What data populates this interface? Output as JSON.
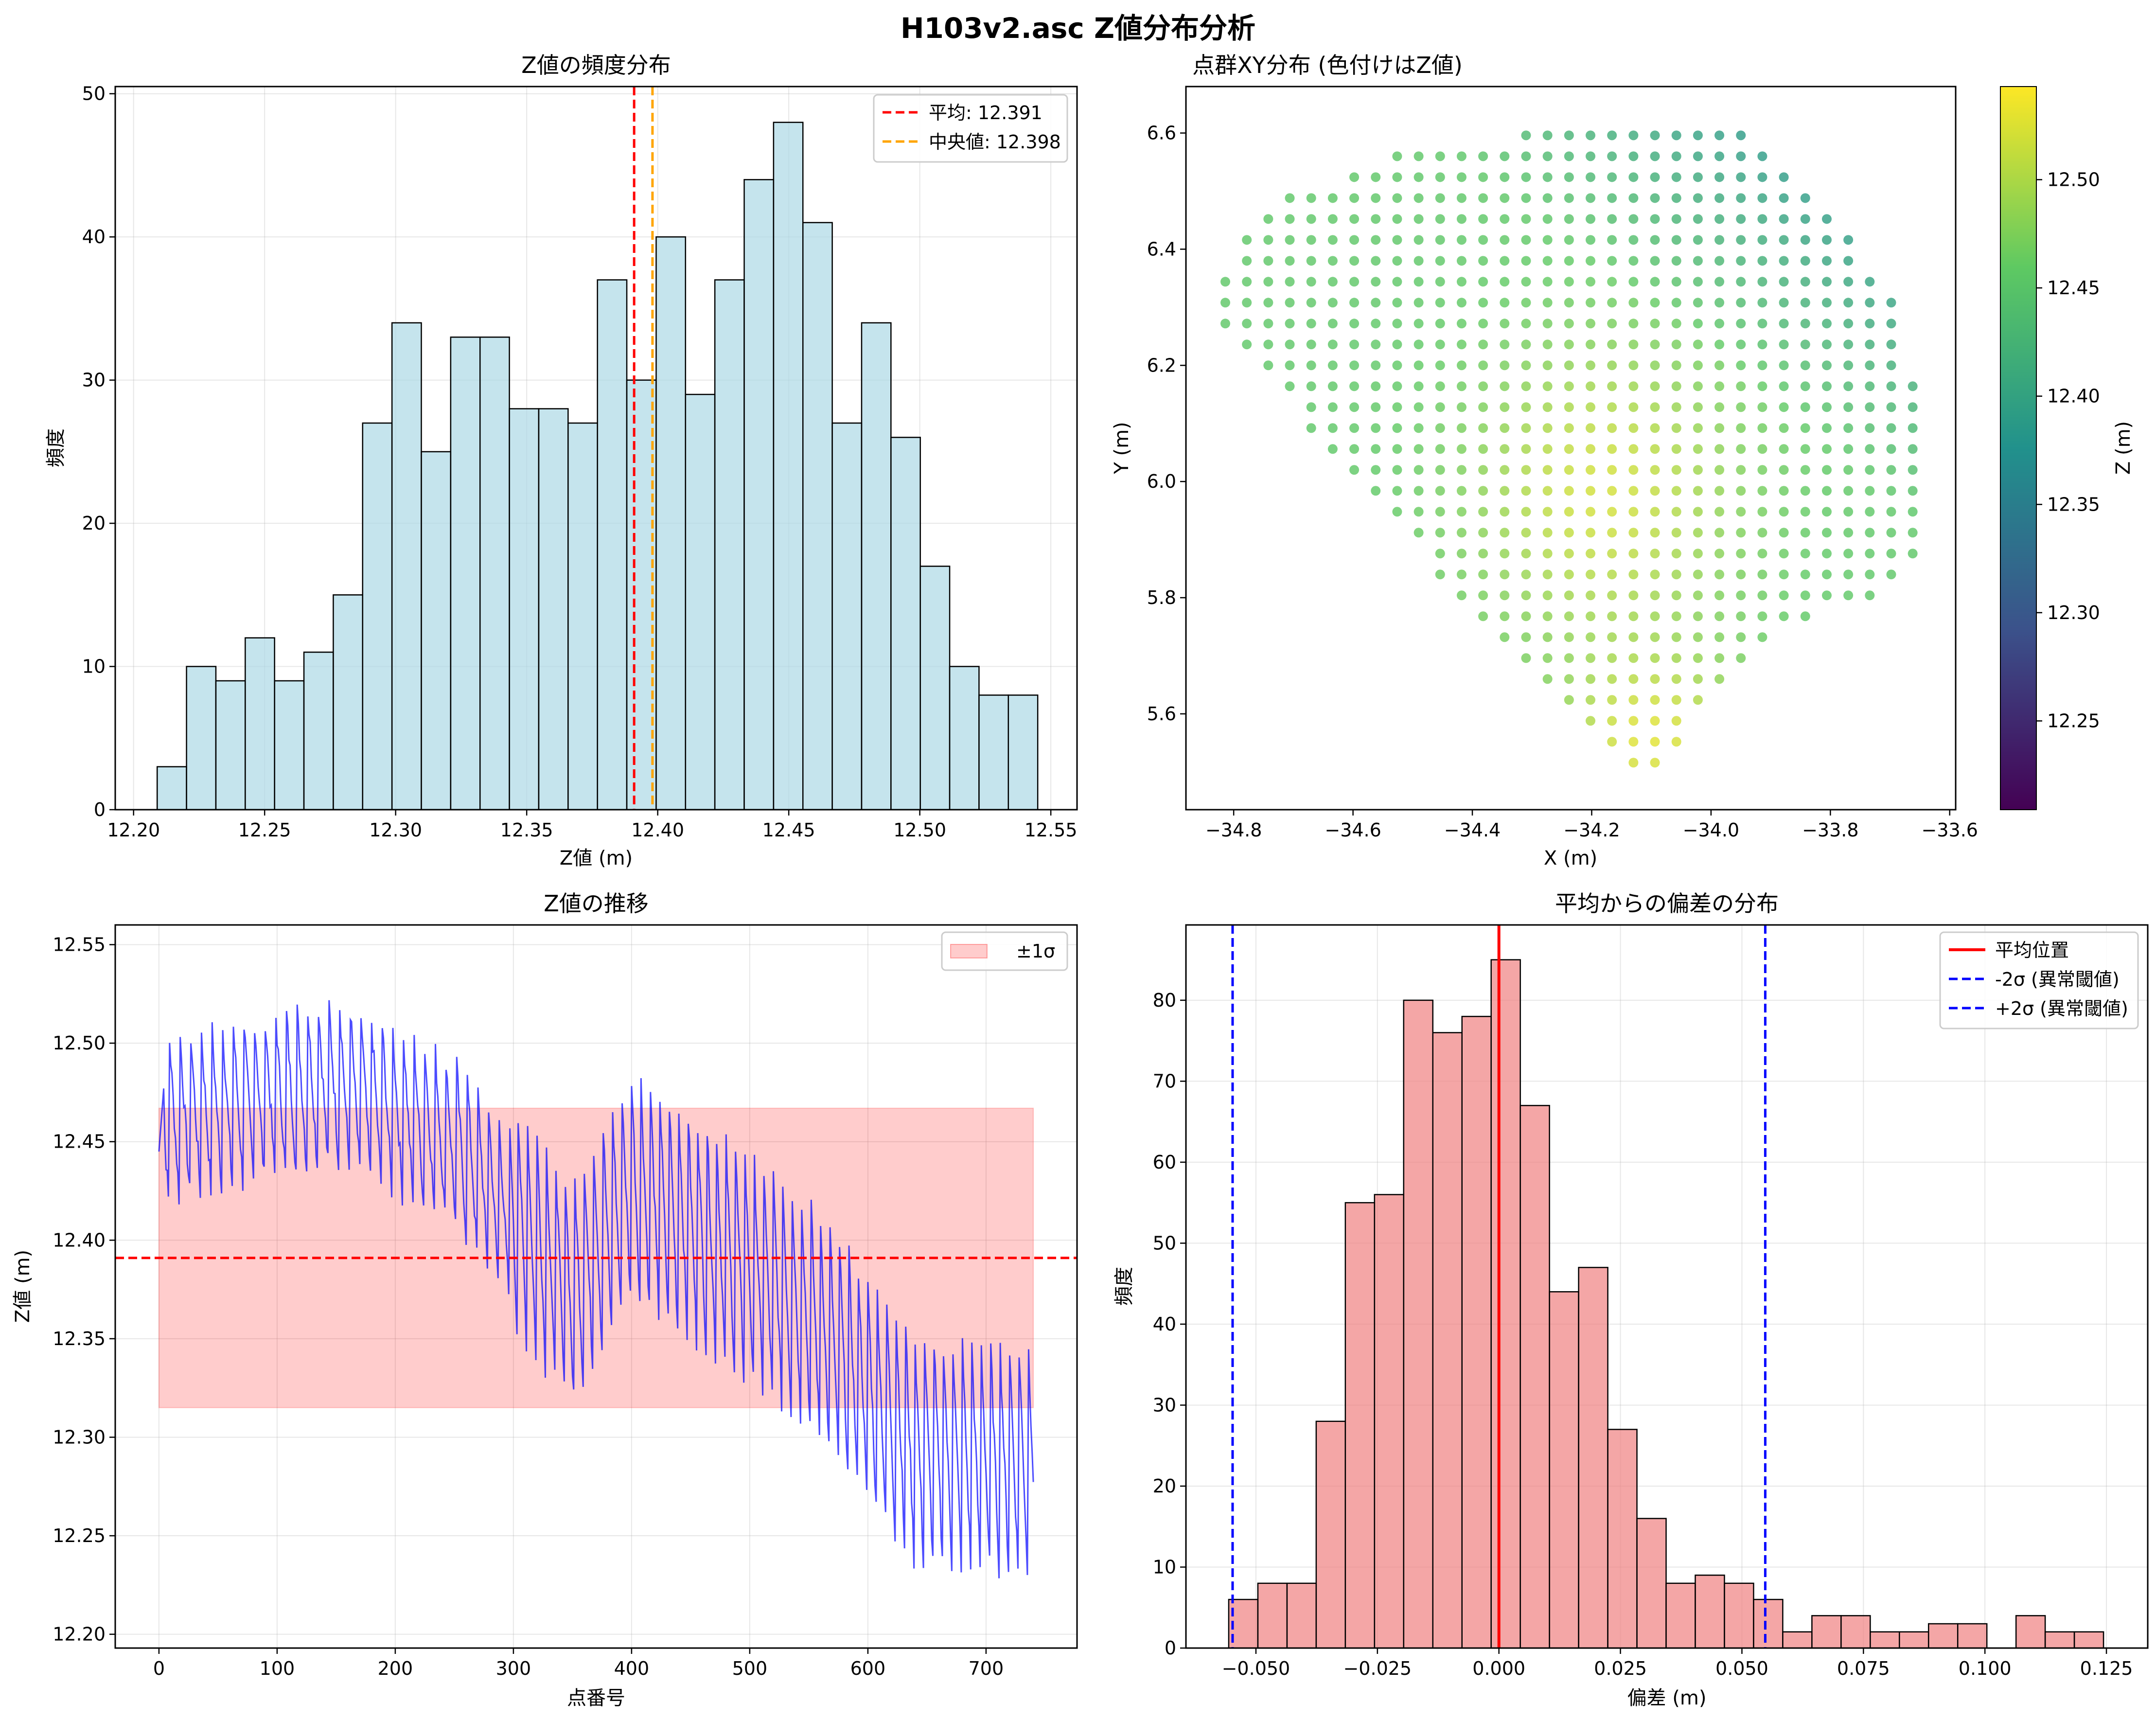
{
  "figure": {
    "title": "H103v2.asc Z値分布分析"
  },
  "colors": {
    "hist_fill": "#add8e6",
    "err_fill": "#f08080",
    "series_line": "#0000ff",
    "mean_line": "#ff0000",
    "median_line": "#ffa500",
    "band_fill": "#ff0000",
    "sigma_line": "#0000ff"
  },
  "chart_data": [
    {
      "id": "z_hist",
      "type": "bar",
      "title": "Z値の頻度分布",
      "xlabel": "Z値 (m)",
      "ylabel": "頻度",
      "xlim": [
        12.193,
        12.56
      ],
      "ylim": [
        0,
        50.5
      ],
      "xticks": [
        "12.20",
        "12.25",
        "12.30",
        "12.35",
        "12.40",
        "12.45",
        "12.50",
        "12.55"
      ],
      "yticks": [
        "0",
        "10",
        "20",
        "30",
        "40",
        "50"
      ],
      "grid": true,
      "bin_start": 12.209,
      "bin_width": 0.0112,
      "values": [
        3,
        10,
        9,
        12,
        9,
        11,
        15,
        27,
        34,
        25,
        33,
        33,
        28,
        28,
        27,
        37,
        30,
        40,
        29,
        37,
        44,
        48,
        41,
        27,
        34,
        26,
        17,
        10,
        8,
        8
      ],
      "lines": [
        {
          "name": "平均: 12.391",
          "x": 12.391,
          "color": "#ff0000"
        },
        {
          "name": "中央値: 12.398",
          "x": 12.398,
          "color": "#ffa500"
        }
      ],
      "legend": "top-right"
    },
    {
      "id": "xy_scatter",
      "type": "scatter",
      "title": "点群XY分布 (色付けはZ値)",
      "xlabel": "X (m)",
      "ylabel": "Y (m)",
      "xlim": [
        -34.88,
        -33.59
      ],
      "ylim": [
        5.435,
        6.68
      ],
      "xticks": [
        "−34.8",
        "−34.6",
        "−34.4",
        "−34.2",
        "−34.0",
        "−33.8",
        "−33.6"
      ],
      "yticks": [
        "5.6",
        "5.8",
        "6.0",
        "6.2",
        "6.4",
        "6.6"
      ],
      "grid": false,
      "grid_spacing": 0.036,
      "colorbar": {
        "label": "Z (m)",
        "min": 12.209,
        "max": 12.543,
        "ticks": [
          "12.25",
          "12.30",
          "12.35",
          "12.40",
          "12.45",
          "12.50"
        ]
      },
      "outline": [
        [
          -34.85,
          6.34
        ],
        [
          -34.7,
          6.5
        ],
        [
          -34.5,
          6.57
        ],
        [
          -34.3,
          6.6
        ],
        [
          -34.1,
          6.63
        ],
        [
          -33.95,
          6.6
        ],
        [
          -33.86,
          6.53
        ],
        [
          -33.8,
          6.47
        ],
        [
          -33.75,
          6.39
        ],
        [
          -33.68,
          6.28
        ],
        [
          -33.63,
          6.05
        ],
        [
          -33.63,
          5.9
        ],
        [
          -33.68,
          5.82
        ],
        [
          -33.8,
          5.78
        ],
        [
          -33.95,
          5.69
        ],
        [
          -34.02,
          5.6
        ],
        [
          -34.08,
          5.48
        ],
        [
          -34.2,
          5.56
        ],
        [
          -34.32,
          5.67
        ],
        [
          -34.42,
          5.8
        ],
        [
          -34.55,
          5.95
        ],
        [
          -34.65,
          6.05
        ],
        [
          -34.75,
          6.2
        ],
        [
          -34.84,
          6.3
        ]
      ],
      "color_scale": "viridis"
    },
    {
      "id": "z_series",
      "type": "line",
      "title": "Z値の推移",
      "xlabel": "点番号",
      "ylabel": "Z値 (m)",
      "xlim": [
        -37,
        777
      ],
      "ylim": [
        12.193,
        12.56
      ],
      "xticks": [
        "0",
        "100",
        "200",
        "300",
        "400",
        "500",
        "600",
        "700"
      ],
      "yticks": [
        "12.20",
        "12.25",
        "12.30",
        "12.35",
        "12.40",
        "12.45",
        "12.50",
        "12.55"
      ],
      "grid": true,
      "n_points": 741,
      "mean": 12.391,
      "band": {
        "name": "±1σ",
        "low": 12.315,
        "high": 12.467
      },
      "trend_knots": [
        [
          0,
          12.455
        ],
        [
          150,
          12.475
        ],
        [
          250,
          12.445
        ],
        [
          350,
          12.365
        ],
        [
          400,
          12.42
        ],
        [
          550,
          12.355
        ],
        [
          640,
          12.285
        ],
        [
          740,
          12.28
        ]
      ],
      "legend": "top-right"
    },
    {
      "id": "resid_hist",
      "type": "bar",
      "title": "平均からの偏差の分布",
      "xlabel": "偏差 (m)",
      "ylabel": "頻度",
      "xlim": [
        -0.0644,
        0.1335
      ],
      "ylim": [
        0,
        89.3
      ],
      "xticks": [
        "−0.050",
        "−0.025",
        "0.000",
        "0.025",
        "0.050",
        "0.075",
        "0.100",
        "0.125"
      ],
      "yticks": [
        "0",
        "10",
        "20",
        "30",
        "40",
        "50",
        "60",
        "70",
        "80"
      ],
      "grid": true,
      "bin_start": -0.0556,
      "bin_width": 0.006,
      "values": [
        6,
        8,
        8,
        28,
        55,
        56,
        80,
        76,
        78,
        85,
        67,
        44,
        47,
        27,
        16,
        8,
        9,
        8,
        6,
        2,
        4,
        4,
        2,
        2,
        3,
        3,
        0,
        4,
        2,
        2
      ],
      "lines": [
        {
          "name": "平均位置",
          "x": 0.0,
          "color": "#ff0000",
          "style": "solid"
        },
        {
          "name": "-2σ (異常閾値)",
          "x": -0.0548,
          "color": "#0000ff",
          "style": "dashed"
        },
        {
          "name": "+2σ (異常閾値)",
          "x": 0.0548,
          "color": "#0000ff",
          "style": "dashed"
        }
      ],
      "legend": "top-right"
    }
  ]
}
